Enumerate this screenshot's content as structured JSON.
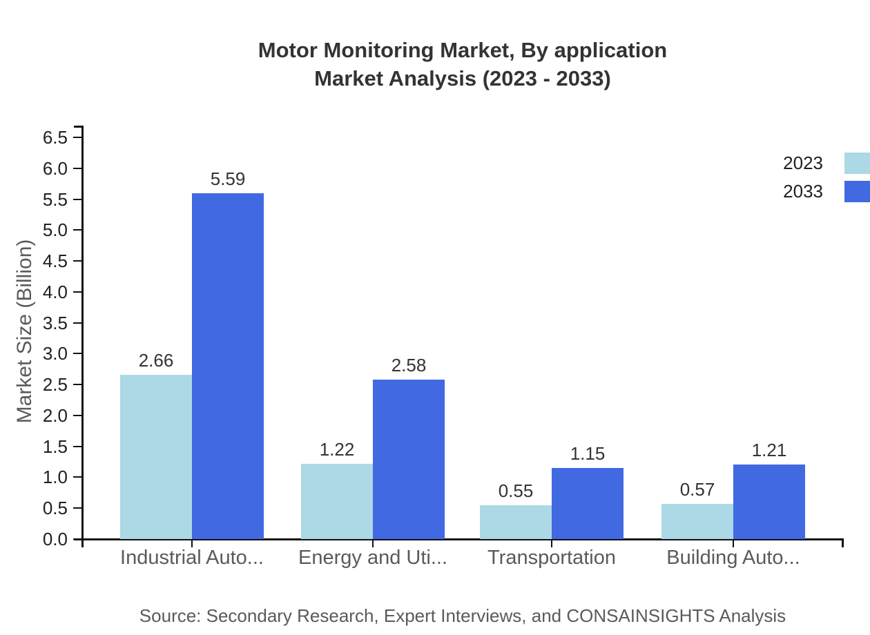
{
  "chart_data": {
    "type": "bar",
    "title": {
      "line1": "Motor Monitoring Market, By application",
      "line2": "Market Analysis (2023 - 2033)"
    },
    "categories": [
      {
        "label": "Industrial Auto...",
        "slug": "industrial-auto"
      },
      {
        "label": "Energy and Uti...",
        "slug": "energy-and-uti"
      },
      {
        "label": "Transportation",
        "slug": "transportation"
      },
      {
        "label": "Building Auto...",
        "slug": "building-auto"
      }
    ],
    "series": [
      {
        "name": "2023",
        "color": "#ADD8E6",
        "values": [
          2.66,
          1.22,
          0.55,
          0.57
        ],
        "labels": [
          "2.66",
          "1.22",
          "0.55",
          "0.57"
        ]
      },
      {
        "name": "2033",
        "color": "#4169E1",
        "values": [
          5.59,
          2.58,
          1.15,
          1.21
        ],
        "labels": [
          "5.59",
          "2.58",
          "1.15",
          "1.21"
        ]
      }
    ],
    "ylabel": "Market Size (Billion)",
    "ylim": [
      0,
      6.5
    ],
    "ytick_step": 0.5,
    "ytick_labels": [
      "0.0",
      "0.5",
      "1.0",
      "1.5",
      "2.0",
      "2.5",
      "3.0",
      "3.5",
      "4.0",
      "4.5",
      "5.0",
      "5.5",
      "6.0",
      "6.5"
    ],
    "grid": false,
    "legend_position": "top-right",
    "source": "Source: Secondary Research, Expert Interviews, and CONSAINSIGHTS Analysis"
  },
  "colors": {
    "background": "#ffffff",
    "axis": "#111111",
    "title_text": "#333333",
    "muted_text": "#5a5a5a",
    "tick_text": "#1f1f1f",
    "series_2023": "#ADD8E6",
    "series_2033": "#4169E1"
  }
}
